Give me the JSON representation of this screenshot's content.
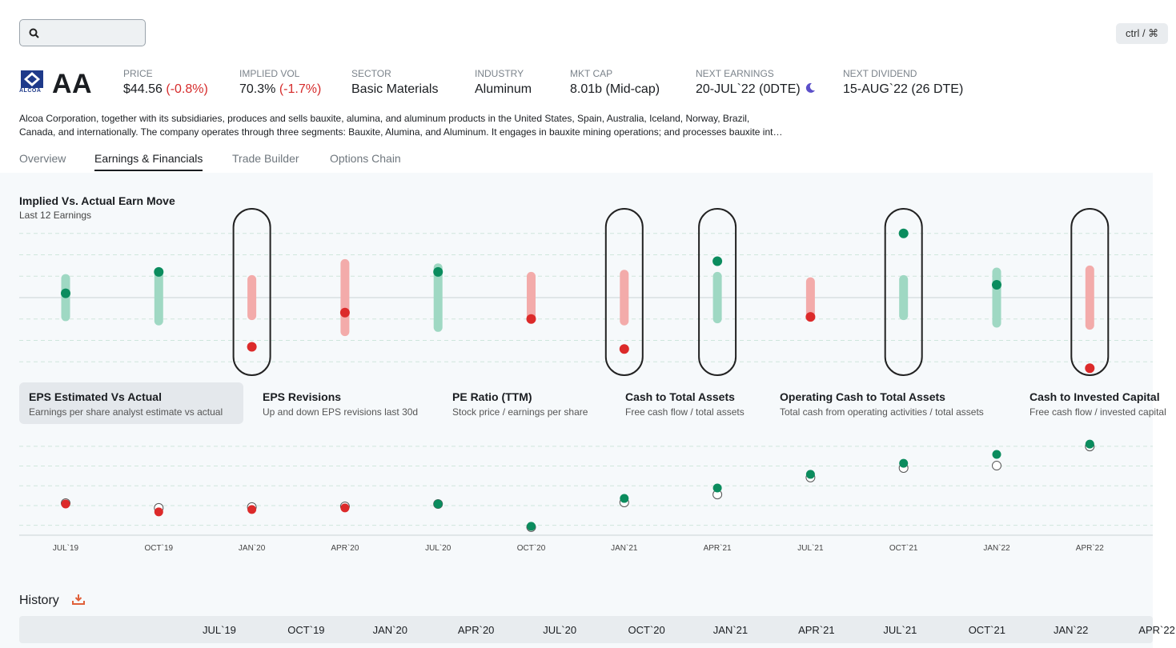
{
  "search": {
    "shortcut": "ctrl / ⌘"
  },
  "company": {
    "logo": "ALCOA",
    "ticker": "AA",
    "description": [
      "Alcoa Corporation, together with its subsidiaries, produces and sells bauxite, alumina, and aluminum products in the United States, Spain, Australia, Iceland, Norway, Brazil,",
      "Canada, and internationally. The company operates through three segments: Bauxite, Alumina, and Aluminum. It engages in bauxite mining operations; and processes bauxite int…"
    ]
  },
  "stats": [
    {
      "label": "PRICE",
      "value": "$44.56",
      "change": "(-0.8%)"
    },
    {
      "label": "IMPLIED VOL",
      "value": "70.3%",
      "change": "(-1.7%)"
    },
    {
      "label": "SECTOR",
      "value": "Basic Materials"
    },
    {
      "label": "INDUSTRY",
      "value": "Aluminum"
    },
    {
      "label": "MKT CAP",
      "value": "8.01b (Mid-cap)"
    },
    {
      "label": "NEXT EARNINGS",
      "value": "20-JUL`22 (0DTE)"
    },
    {
      "label": "NEXT DIVIDEND",
      "value": "15-AUG`22 (26 DTE)"
    }
  ],
  "tabs": {
    "items": [
      "Overview",
      "Earnings & Financials",
      "Trade Builder",
      "Options Chain"
    ],
    "active": 1
  },
  "implied_chart": {
    "type": "range-dot",
    "title": "Implied Vs. Actual Earn Move",
    "subtitle": "Last 12 Earnings",
    "implied": [
      1.1,
      1.3,
      1.05,
      1.8,
      1.6,
      1.2,
      1.3,
      1.2,
      0.95,
      1.05,
      1.4,
      1.5
    ],
    "actual": [
      0.2,
      1.2,
      -2.3,
      -0.7,
      1.2,
      -1.0,
      -2.4,
      1.7,
      -0.9,
      3.0,
      0.6,
      -3.3
    ],
    "ylim": [
      -4,
      4
    ],
    "yticks": [
      -3,
      -2,
      -1,
      0,
      1,
      2,
      3
    ]
  },
  "metrics": {
    "items": [
      {
        "title": "EPS Estimated Vs Actual",
        "subtitle": "Earnings per share analyst estimate vs actual"
      },
      {
        "title": "EPS Revisions",
        "subtitle": "Up and down EPS revisions last 30d"
      },
      {
        "title": "PE Ratio (TTM)",
        "subtitle": "Stock price / earnings per share"
      },
      {
        "title": "Cash to Total Assets",
        "subtitle": "Free cash flow / total assets"
      },
      {
        "title": "Operating Cash to Total Assets",
        "subtitle": "Total cash from operating activities / total assets"
      },
      {
        "title": "Cash to Invested Capital",
        "subtitle": "Free cash flow / invested capital"
      }
    ],
    "active": 0
  },
  "eps_chart": {
    "type": "dot-compare",
    "categories": [
      "JUL`19",
      "OCT`19",
      "JAN`20",
      "APR`20",
      "JUL`20",
      "OCT`20",
      "JAN`21",
      "APR`21",
      "JUL`21",
      "OCT`21",
      "JAN`22",
      "APR`22"
    ],
    "estimate": [
      1.12,
      0.88,
      0.92,
      0.96,
      1.08,
      -0.09,
      1.16,
      1.56,
      2.42,
      2.9,
      3.02,
      3.99
    ],
    "actual": [
      1.08,
      0.68,
      0.8,
      0.88,
      1.08,
      -0.05,
      1.36,
      1.89,
      2.58,
      3.14,
      3.59,
      4.11
    ],
    "ylim": [
      -0.5,
      4.5
    ],
    "yticks": [
      0,
      1,
      2,
      3,
      4
    ]
  },
  "history": {
    "title": "History",
    "columns": [
      "JUL`19",
      "OCT`19",
      "JAN`20",
      "APR`20",
      "JUL`20",
      "OCT`20",
      "JAN`21",
      "APR`21",
      "JUL`21",
      "OCT`21",
      "JAN`22",
      "APR`22"
    ]
  }
}
